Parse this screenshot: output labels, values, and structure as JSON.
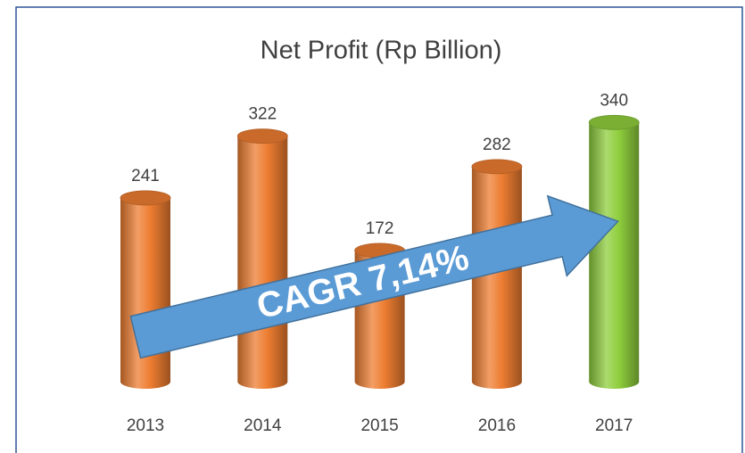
{
  "chart_data": {
    "type": "bar",
    "title": "Net Profit (Rp Billion)",
    "categories": [
      "2013",
      "2014",
      "2015",
      "2016",
      "2017"
    ],
    "values": [
      241,
      322,
      172,
      282,
      340
    ],
    "colors": [
      "#ed7d31",
      "#ed7d31",
      "#ed7d31",
      "#ed7d31",
      "#8fce3d"
    ],
    "annotation": "CAGR 7,14%"
  }
}
